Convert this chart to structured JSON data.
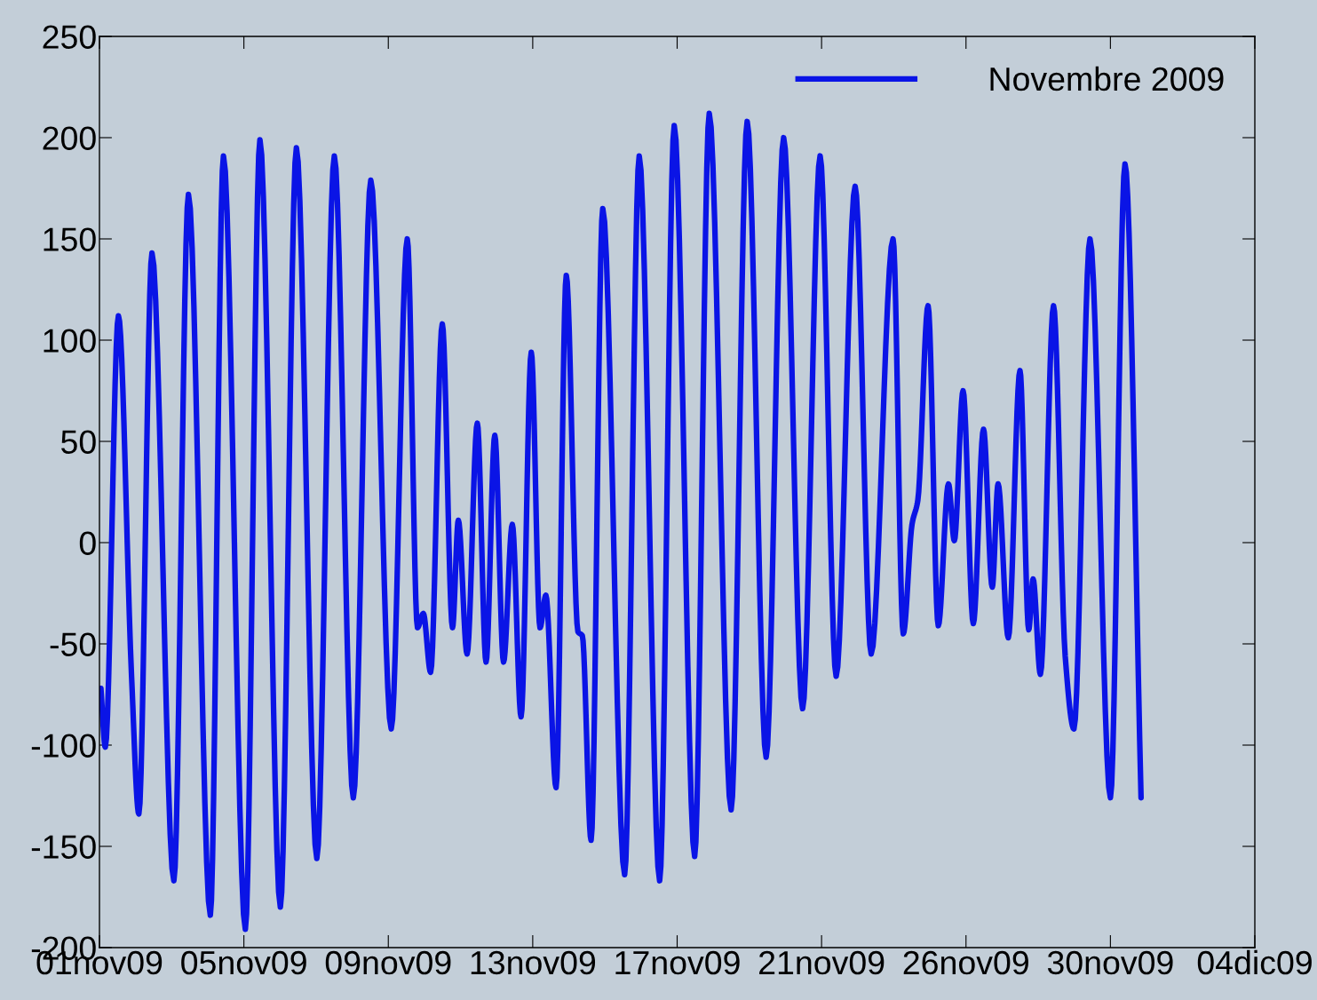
{
  "chart_data": {
    "type": "line",
    "x": [
      "2009-11-01T01:00",
      "2009-11-01T04:00",
      "2009-11-01T13:00",
      "2009-11-01T22:00",
      "2009-11-02T03:00",
      "2009-11-02T12:00",
      "2009-11-03T03:00",
      "2009-11-03T13:00",
      "2009-11-04T04:00",
      "2009-11-04T13:00",
      "2009-11-05T04:00",
      "2009-11-05T14:00",
      "2009-11-06T04:00",
      "2009-11-06T15:00",
      "2009-11-07T05:00",
      "2009-11-07T17:00",
      "2009-11-08T06:00",
      "2009-11-08T18:00",
      "2009-11-09T08:00",
      "2009-11-09T19:00",
      "2009-11-10T02:00",
      "2009-11-10T06:00",
      "2009-11-10T11:00",
      "2009-11-10T19:00",
      "2009-11-11T02:00",
      "2009-11-11T06:00",
      "2009-11-11T12:00",
      "2009-11-11T19:00",
      "2009-11-12T01:00",
      "2009-11-12T07:00",
      "2009-11-12T13:00",
      "2009-11-12T19:00",
      "2009-11-13T01:00",
      "2009-11-13T08:00",
      "2009-11-13T14:00",
      "2009-11-13T18:00",
      "2009-11-14T01:00",
      "2009-11-14T08:00",
      "2009-11-14T16:00",
      "2009-11-14T19:00",
      "2009-11-15T01:00",
      "2009-11-15T09:00",
      "2009-11-16T00:00",
      "2009-11-16T10:00",
      "2009-11-17T00:00",
      "2009-11-17T10:00",
      "2009-11-18T00:00",
      "2009-11-18T10:00",
      "2009-11-19T01:00",
      "2009-11-19T12:00",
      "2009-11-20T01:00",
      "2009-11-20T13:00",
      "2009-11-21T02:00",
      "2009-11-21T14:00",
      "2009-11-22T01:00",
      "2009-11-22T14:00",
      "2009-11-23T01:00",
      "2009-11-23T16:00",
      "2009-11-23T23:00",
      "2009-11-24T05:00",
      "2009-11-24T09:00",
      "2009-11-24T16:00",
      "2009-11-24T23:00",
      "2009-11-25T06:00",
      "2009-11-25T10:00",
      "2009-11-25T16:00",
      "2009-11-25T23:00",
      "2009-11-26T06:00",
      "2009-11-26T12:00",
      "2009-11-26T16:00",
      "2009-11-26T23:00",
      "2009-11-27T07:00",
      "2009-11-27T13:00",
      "2009-11-27T16:00",
      "2009-11-27T21:00",
      "2009-11-28T06:00",
      "2009-11-28T14:00",
      "2009-11-28T20:00",
      "2009-11-29T07:00",
      "2009-11-29T21:00",
      "2009-11-30T07:00",
      "2009-11-30T18:00"
    ],
    "series": [
      {
        "name": "Novembre 2009",
        "color": "#0a14e6",
        "values": [
          -72,
          -101,
          112,
          -66,
          -134,
          143,
          -167,
          172,
          -184,
          191,
          -191,
          199,
          -180,
          195,
          -156,
          191,
          -126,
          179,
          -92,
          150,
          -42,
          -35,
          -64,
          108,
          -42,
          11,
          -55,
          59,
          -59,
          53,
          -59,
          9,
          -86,
          94,
          -42,
          -26,
          -121,
          132,
          -44,
          -46,
          -147,
          165,
          -164,
          191,
          -167,
          206,
          -155,
          212,
          -132,
          208,
          -106,
          200,
          -82,
          191,
          -66,
          176,
          -55,
          150,
          -45,
          9,
          21,
          117,
          -41,
          29,
          1,
          75,
          -40,
          56,
          -22,
          29,
          -47,
          85,
          -43,
          -18,
          -65,
          117,
          -56,
          -92,
          150,
          -126,
          187,
          -126
        ]
      }
    ],
    "xlim": [
      "2009-11-01T00:00",
      "2009-12-04T00:00"
    ],
    "xticks": [
      {
        "value": "2009-11-01T00:00",
        "label": "01nov09"
      },
      {
        "value": "2009-11-05T03:00",
        "label": "05nov09"
      },
      {
        "value": "2009-11-09T06:00",
        "label": "09nov09"
      },
      {
        "value": "2009-11-13T09:00",
        "label": "13nov09"
      },
      {
        "value": "2009-11-17T12:00",
        "label": "17nov09"
      },
      {
        "value": "2009-11-21T15:00",
        "label": "21nov09"
      },
      {
        "value": "2009-11-25T18:00",
        "label": "26nov09"
      },
      {
        "value": "2009-11-29T21:00",
        "label": "30nov09"
      },
      {
        "value": "2009-12-04T00:00",
        "label": "04dic09"
      }
    ],
    "ylim": [
      -200,
      250
    ],
    "yticks": [
      -200,
      -150,
      -100,
      -50,
      0,
      50,
      100,
      150,
      200,
      250
    ],
    "legend": "top right",
    "grid": false,
    "marker": "none",
    "line_style": "solid"
  }
}
